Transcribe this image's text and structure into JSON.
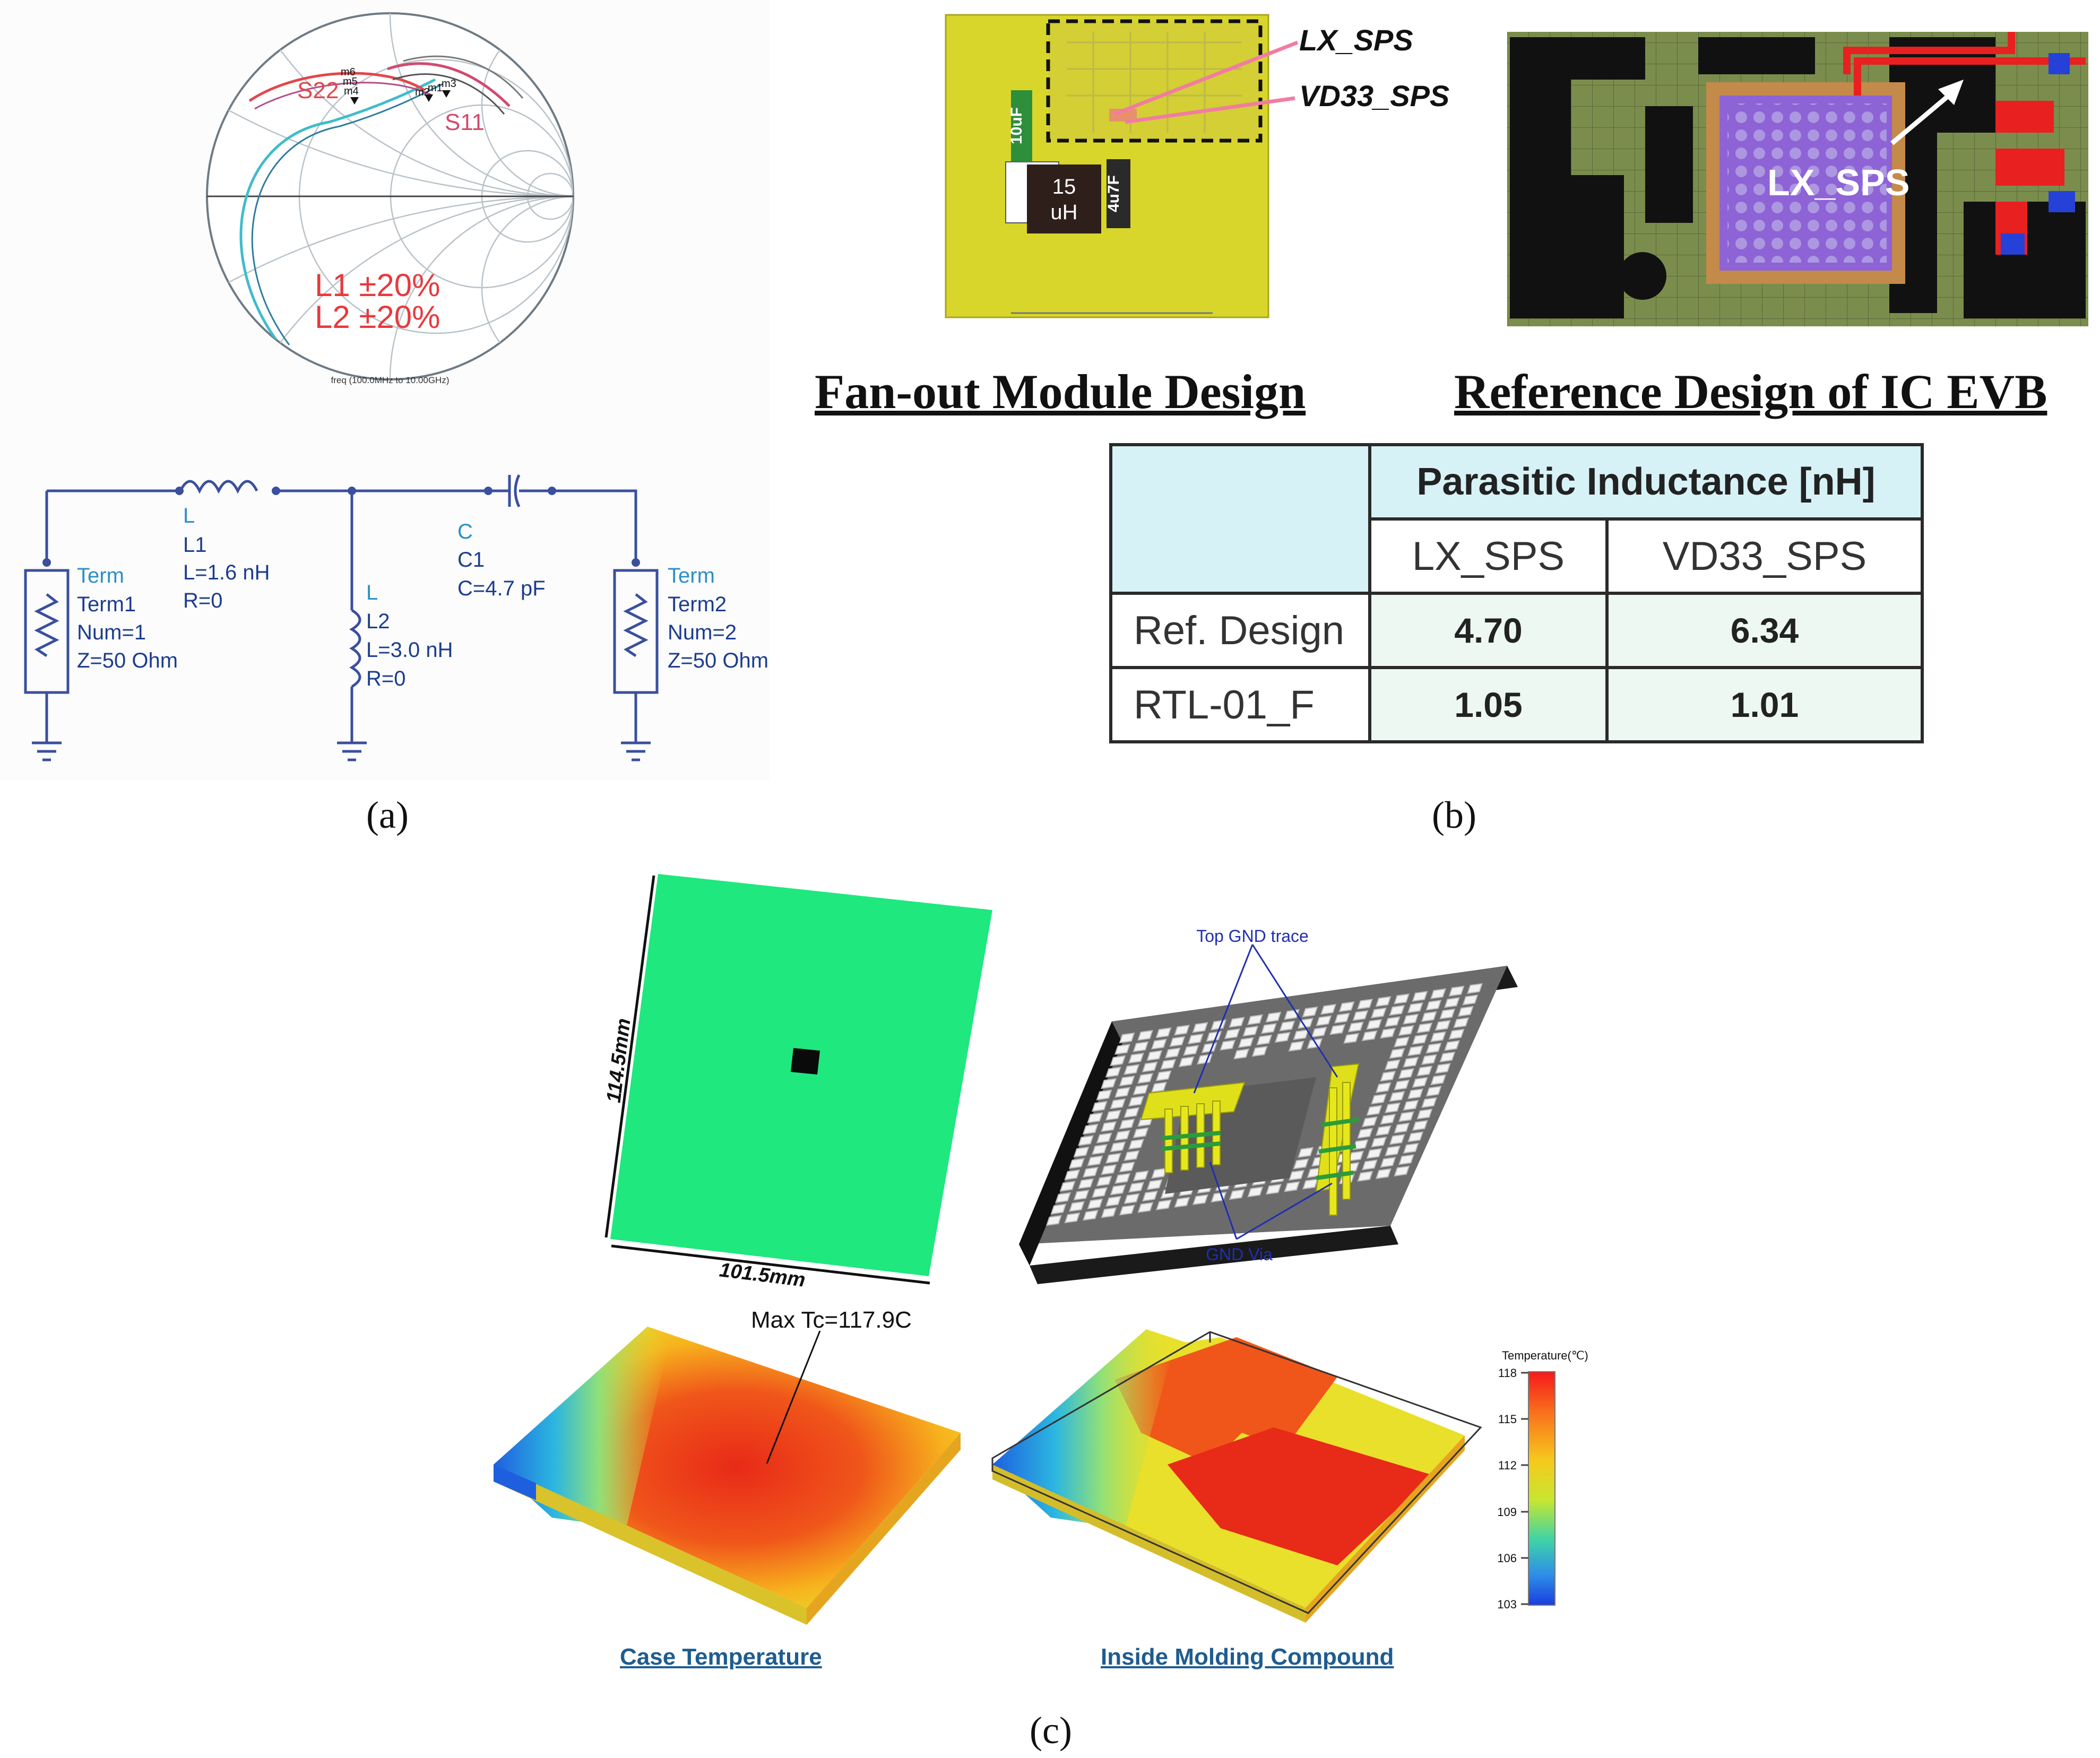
{
  "panel_a": {
    "caption": "(a)",
    "smith": {
      "s22_label": "S22",
      "s11_label": "S11",
      "markers_left": [
        "m6",
        "m5",
        "m4"
      ],
      "markers_right": [
        "m2",
        "m1",
        "m3"
      ],
      "tolerance_line1": "L1 ±20%",
      "tolerance_line2": "L2 ±20%",
      "freq_note": "freq (100.0MHz to 10.00GHz)",
      "s22_color": "#e2474b",
      "s11_color": "#d24a6e",
      "trace_cyan": "#3fbccb"
    },
    "schematic": {
      "term1": {
        "type": "Term",
        "name": "Term1",
        "num": "Num=1",
        "z": "Z=50 Ohm"
      },
      "term2": {
        "type": "Term",
        "name": "Term2",
        "num": "Num=2",
        "z": "Z=50 Ohm"
      },
      "l1": {
        "type": "L",
        "name": "L1",
        "value": "L=1.6 nH",
        "r": "R=0"
      },
      "l2": {
        "type": "L",
        "name": "L2",
        "value": "L=3.0 nH",
        "r": "R=0"
      },
      "c1": {
        "type": "C",
        "name": "C1",
        "value": "C=4.7 pF"
      },
      "wire_color": "#3a4f9e",
      "label_color": "#2b8fc7",
      "text_color": "#1c3c8f"
    }
  },
  "panel_b": {
    "caption": "(b)",
    "fanout": {
      "inductor_line1": "15",
      "inductor_line2": "uH",
      "cap_left": "10uF",
      "cap_right": "4u7F",
      "net1": "LX_SPS",
      "net2": "VD33_SPS",
      "title": "Fan-out Module Design"
    },
    "ref_design": {
      "label": "LX_SPS",
      "title": "Reference Design of IC EVB"
    },
    "table": {
      "header": "Parasitic Inductance [nH]",
      "columns": [
        "LX_SPS",
        "VD33_SPS"
      ],
      "rows": [
        {
          "label": "Ref. Design",
          "values": [
            "4.70",
            "6.34"
          ]
        },
        {
          "label": "RTL-01_F",
          "values": [
            "1.05",
            "1.01"
          ]
        }
      ]
    }
  },
  "panel_c": {
    "caption": "(c)",
    "board": {
      "height_label": "114.5mm",
      "width_label": "101.5mm",
      "color": "#1ee87e"
    },
    "package": {
      "top_label": "Top GND trace",
      "bottom_label": "GND Via",
      "label_color": "#1f2fb0"
    },
    "thermal": {
      "max_label": "Max Tc=117.9C",
      "case_caption": "Case Temperature",
      "inside_caption": "Inside Molding Compound"
    },
    "colorbar": {
      "title": "Temperature(℃)",
      "ticks": [
        "118",
        "115",
        "112",
        "109",
        "106",
        "103"
      ],
      "colors": [
        "#f5191b",
        "#f9731c",
        "#f6c91d",
        "#c7e631",
        "#3fd3a6",
        "#2e8ee8",
        "#1a3de0"
      ]
    }
  }
}
